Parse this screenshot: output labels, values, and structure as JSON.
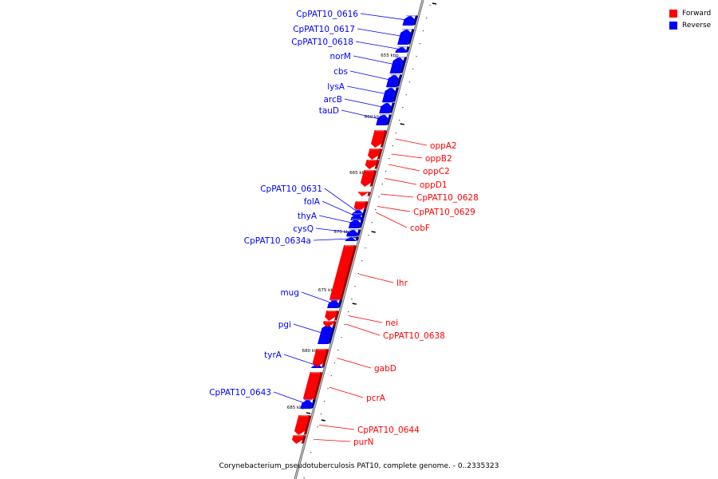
{
  "legend": {
    "forward_label": "Forward",
    "forward_color": "#ff0000",
    "reverse_label": "Reverse",
    "reverse_color": "#0000ff"
  },
  "caption": "Corynebacterium_pseudotuberculosis PAT10, complete genome. - 0..2335323",
  "tick_labels": [
    "655 kbp",
    "660 kbp",
    "665 kbp",
    "670 kbp",
    "675 kbp",
    "680 kbp",
    "685 kbp"
  ],
  "genes": [
    {
      "name": "CpPAT10_0616",
      "strand": "reverse"
    },
    {
      "name": "CpPAT10_0617",
      "strand": "reverse"
    },
    {
      "name": "CpPAT10_0618",
      "strand": "reverse"
    },
    {
      "name": "norM",
      "strand": "reverse"
    },
    {
      "name": "cbs",
      "strand": "reverse"
    },
    {
      "name": "lysA",
      "strand": "reverse"
    },
    {
      "name": "arcB",
      "strand": "reverse"
    },
    {
      "name": "tauD",
      "strand": "reverse"
    },
    {
      "name": "oppA2",
      "strand": "forward"
    },
    {
      "name": "oppB2",
      "strand": "forward"
    },
    {
      "name": "oppC2",
      "strand": "forward"
    },
    {
      "name": "oppD1",
      "strand": "forward"
    },
    {
      "name": "CpPAT10_0628",
      "strand": "forward"
    },
    {
      "name": "CpPAT10_0629",
      "strand": "forward"
    },
    {
      "name": "cobF",
      "strand": "forward"
    },
    {
      "name": "CpPAT10_0631",
      "strand": "reverse"
    },
    {
      "name": "folA",
      "strand": "reverse"
    },
    {
      "name": "thyA",
      "strand": "reverse"
    },
    {
      "name": "cysQ",
      "strand": "reverse"
    },
    {
      "name": "CpPAT10_0634a",
      "strand": "reverse"
    },
    {
      "name": "lhr",
      "strand": "forward"
    },
    {
      "name": "mug",
      "strand": "reverse"
    },
    {
      "name": "pgi",
      "strand": "reverse"
    },
    {
      "name": "nei",
      "strand": "forward"
    },
    {
      "name": "CpPAT10_0638",
      "strand": "forward"
    },
    {
      "name": "tyrA",
      "strand": "reverse"
    },
    {
      "name": "gabD",
      "strand": "forward"
    },
    {
      "name": "pcrA",
      "strand": "forward"
    },
    {
      "name": "CpPAT10_0643",
      "strand": "reverse"
    },
    {
      "name": "CpPAT10_0644",
      "strand": "forward"
    },
    {
      "name": "purN",
      "strand": "forward"
    }
  ]
}
